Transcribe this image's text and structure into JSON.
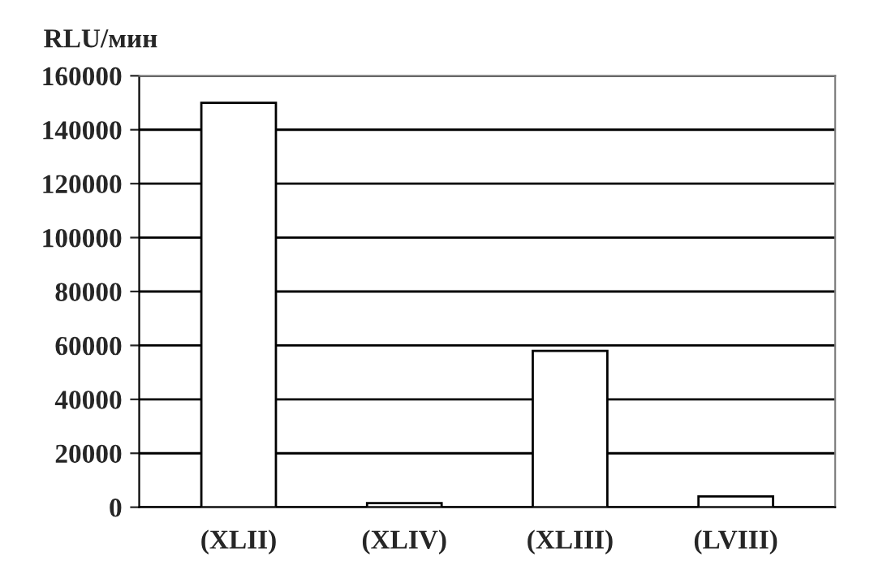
{
  "chart_data": {
    "type": "bar",
    "ylabel": "RLU/мин",
    "categories": [
      "(XLII)",
      "(XLIV)",
      "(XLIII)",
      "(LVIII)"
    ],
    "values": [
      150000,
      1500,
      58000,
      4000
    ],
    "color": "#ffffff",
    "ylim": [
      0,
      160000
    ],
    "yticks": [
      0,
      20000,
      40000,
      60000,
      80000,
      100000,
      120000,
      140000,
      160000
    ],
    "grid": "y"
  }
}
